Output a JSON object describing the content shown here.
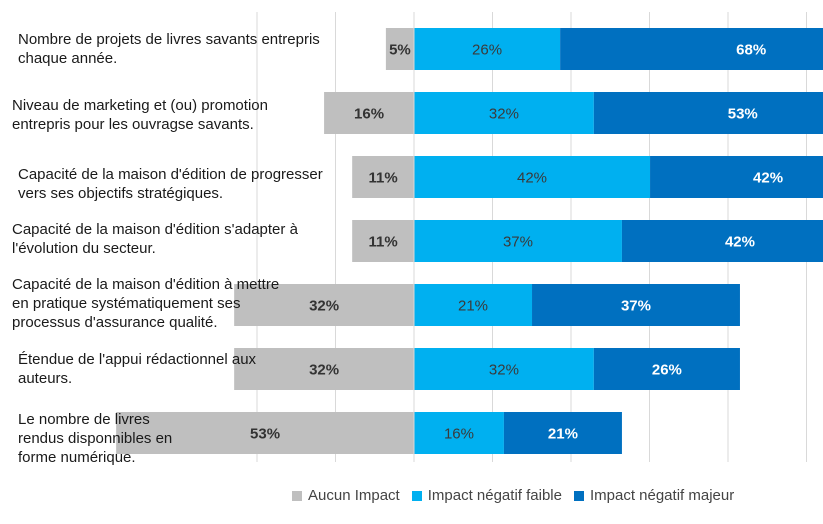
{
  "chart_data": {
    "type": "bar",
    "orientation": "horizontal",
    "stacking": "diverging",
    "categories": [
      "Nombre de projets de livres savants entrepris chaque année.",
      "Niveau de marketing et (ou) promotion entrepris pour les ouvragse savants.",
      "Capacité de la maison d'édition de progresser vers ses objectifs stratégiques.",
      "Capacité de la maison d'édition s'adapter à l'évolution du secteur.",
      "Capacité de la maison d'édition à mettre en pratique systématiquement ses processus d'assurance qualité.",
      "Étendue de l'appui rédactionnel aux auteurs.",
      "Le nombre de livres rendus disponnibles en forme numérique."
    ],
    "category_lines": [
      [
        "Nombre de projets de livres savants entrepris",
        "chaque année."
      ],
      [
        "Niveau de marketing et (ou) promotion",
        "entrepris pour les ouvragse savants."
      ],
      [
        "Capacité de la maison d'édition de progresser",
        "vers ses objectifs stratégiques."
      ],
      [
        "Capacité de la maison d'édition s'adapter à",
        "l'évolution du secteur."
      ],
      [
        "Capacité de la maison d'édition à mettre",
        "en pratique systématiquement ses",
        "processus d'assurance qualité."
      ],
      [
        "Étendue de l'appui rédactionnel aux",
        "auteurs."
      ],
      [
        "Le nombre de livres",
        "rendus disponnibles en",
        "forme numérique."
      ]
    ],
    "series": [
      {
        "name": "Aucun Impact",
        "color": "#bfbfbf",
        "side": "left",
        "values": [
          5,
          16,
          11,
          11,
          32,
          32,
          53
        ]
      },
      {
        "name": "Impact négatif faible",
        "color": "#00b0f0",
        "side": "right",
        "values": [
          26,
          32,
          42,
          37,
          21,
          32,
          16
        ]
      },
      {
        "name": "Impact négatif majeur",
        "color": "#0070c0",
        "side": "right",
        "values": [
          68,
          53,
          42,
          42,
          37,
          26,
          21
        ]
      }
    ],
    "labels": [
      [
        "5%",
        "26%",
        "68%"
      ],
      [
        "16%",
        "32%",
        "53%"
      ],
      [
        "11%",
        "42%",
        "42%"
      ],
      [
        "11%",
        "37%",
        "42%"
      ],
      [
        "32%",
        "21%",
        "37%"
      ],
      [
        "32%",
        "32%",
        "26%"
      ],
      [
        "53%",
        "16%",
        "21%"
      ]
    ],
    "xlim": [
      -53,
      100
    ],
    "grid": true,
    "legend_position": "bottom"
  }
}
